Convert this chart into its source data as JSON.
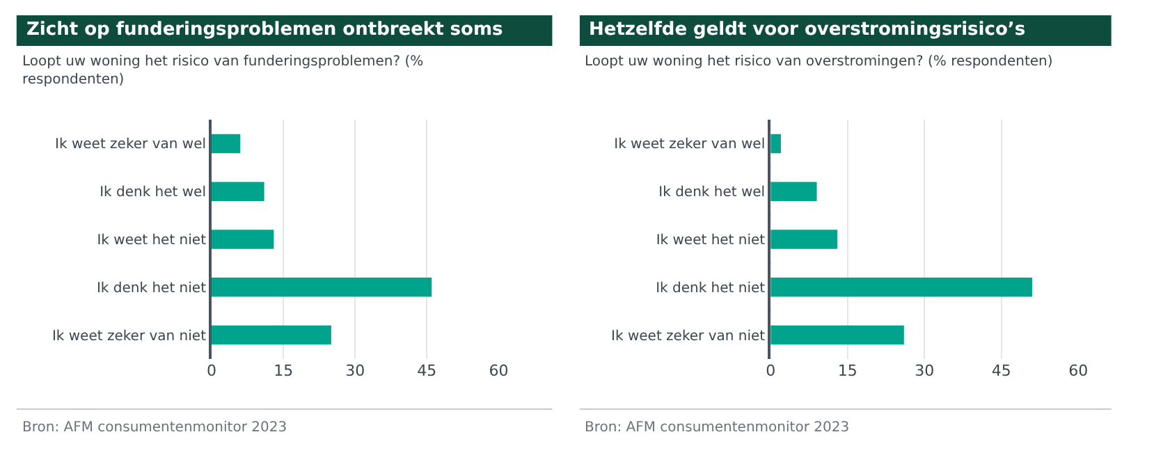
{
  "chart_data": [
    {
      "type": "bar",
      "orientation": "horizontal",
      "title": "Zicht op funderingsproblemen ontbreekt soms",
      "subtitle": "Loopt uw woning het risico van funderingsproblemen? (% respondenten)",
      "categories": [
        "Ik weet zeker van wel",
        "Ik denk het wel",
        "Ik weet het niet",
        "Ik denk het niet",
        "Ik weet zeker van niet"
      ],
      "values": [
        6,
        11,
        13,
        46,
        25
      ],
      "color": "#00a38b",
      "xlim": [
        0,
        60
      ],
      "xticks": [
        0,
        15,
        30,
        45,
        60
      ],
      "grid": "x",
      "annotations": [
        "Bron: AFM consumentenmonitor 2023"
      ]
    },
    {
      "type": "bar",
      "orientation": "horizontal",
      "title": "Hetzelfde geldt voor overstromingsrisico’s",
      "subtitle": "Loopt uw woning het risico van overstromingen? (% respondenten)",
      "categories": [
        "Ik weet zeker van wel",
        "Ik denk het wel",
        "Ik weet het niet",
        "Ik denk het niet",
        "Ik weet zeker van niet"
      ],
      "values": [
        2,
        9,
        13,
        51,
        26
      ],
      "color": "#00a38b",
      "xlim": [
        0,
        60
      ],
      "xticks": [
        0,
        15,
        30,
        45,
        60
      ],
      "grid": "x",
      "annotations": [
        "Bron: AFM consumentenmonitor 2023"
      ]
    }
  ]
}
